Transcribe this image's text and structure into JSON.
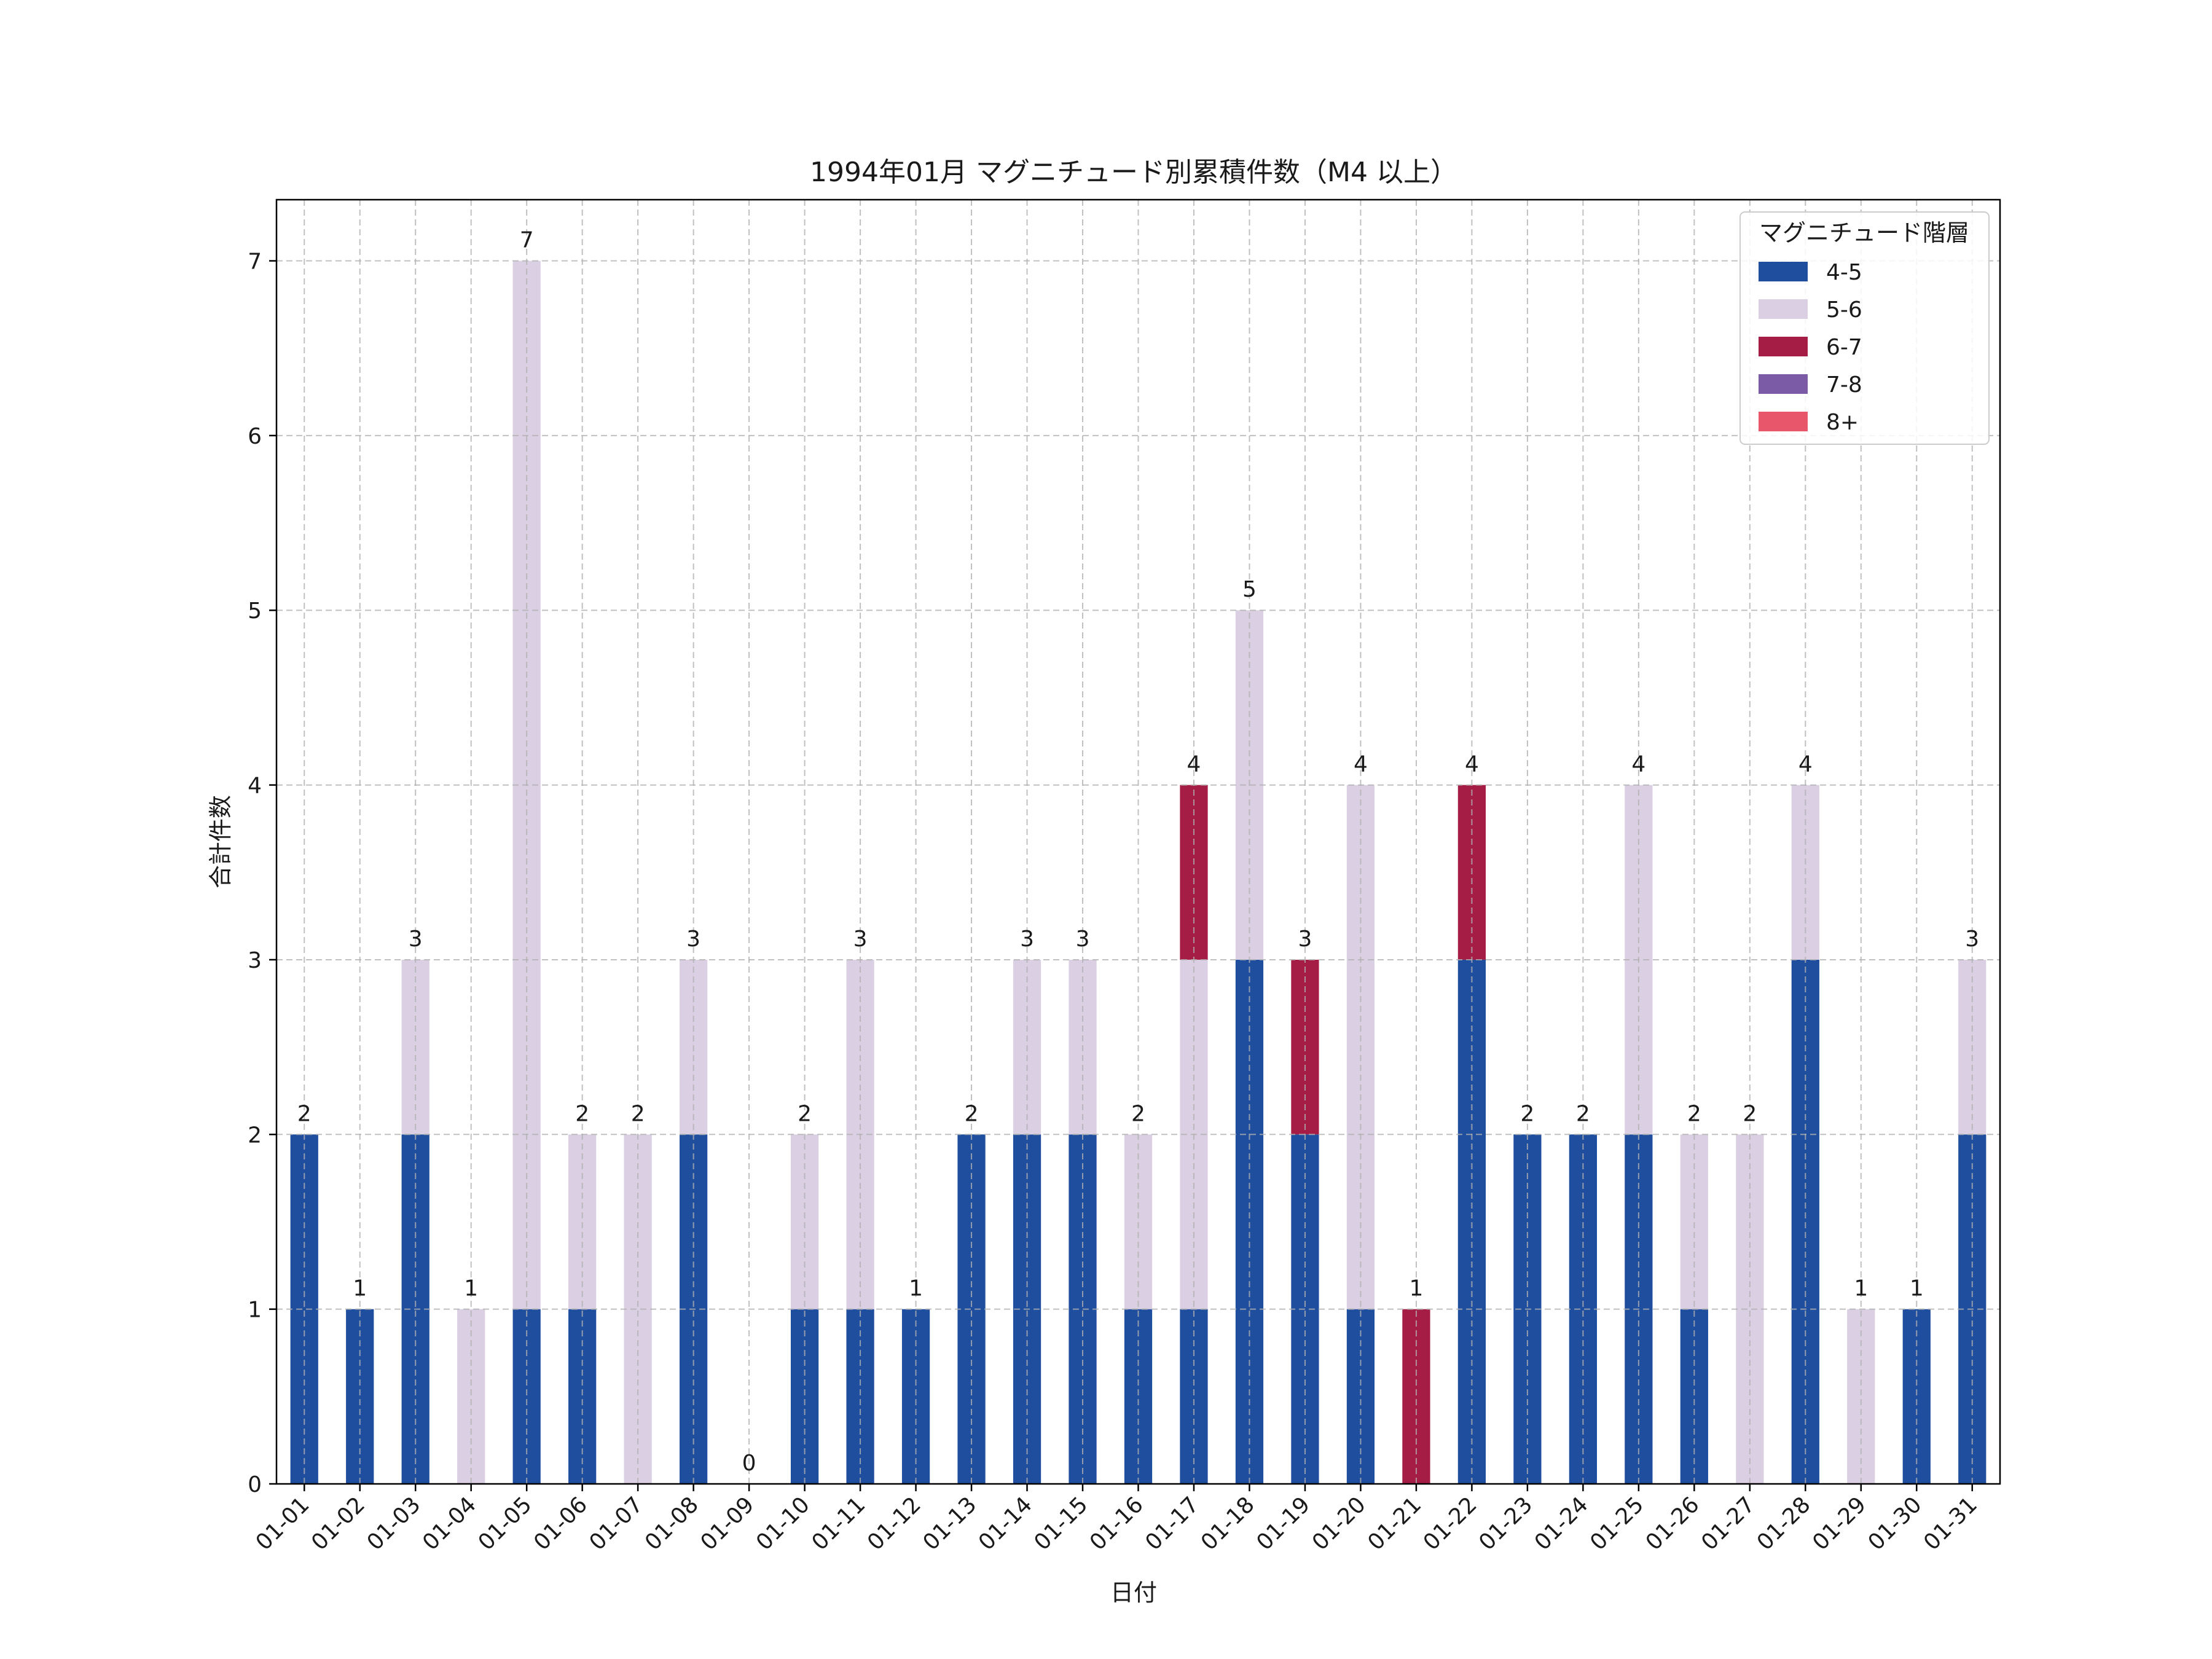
{
  "chart_data": {
    "type": "bar",
    "stacked": true,
    "title": "1994年01月 マグニチュード別累積件数（M4 以上）",
    "xlabel": "日付",
    "ylabel": "合計件数",
    "ylim": [
      0,
      7.35
    ],
    "yticks": [
      0,
      1,
      2,
      3,
      4,
      5,
      6,
      7
    ],
    "grid": true,
    "legend_title": "マグニチュード階層",
    "legend_position": "top-right",
    "categories": [
      "01-01",
      "01-02",
      "01-03",
      "01-04",
      "01-05",
      "01-06",
      "01-07",
      "01-08",
      "01-09",
      "01-10",
      "01-11",
      "01-12",
      "01-13",
      "01-14",
      "01-15",
      "01-16",
      "01-17",
      "01-18",
      "01-19",
      "01-20",
      "01-21",
      "01-22",
      "01-23",
      "01-24",
      "01-25",
      "01-26",
      "01-27",
      "01-28",
      "01-29",
      "01-30",
      "01-31"
    ],
    "series": [
      {
        "name": "4-5",
        "color": "#1f4e9e",
        "values": [
          2,
          1,
          2,
          0,
          1,
          1,
          0,
          2,
          0,
          1,
          1,
          1,
          2,
          2,
          2,
          1,
          1,
          3,
          2,
          1,
          0,
          3,
          2,
          2,
          2,
          1,
          0,
          3,
          0,
          1,
          2
        ]
      },
      {
        "name": "5-6",
        "color": "#dbd0e3",
        "values": [
          0,
          0,
          1,
          1,
          6,
          1,
          2,
          1,
          0,
          1,
          2,
          0,
          0,
          1,
          1,
          1,
          2,
          2,
          0,
          3,
          0,
          0,
          0,
          0,
          2,
          1,
          2,
          1,
          1,
          0,
          1
        ]
      },
      {
        "name": "6-7",
        "color": "#a51c45",
        "values": [
          0,
          0,
          0,
          0,
          0,
          0,
          0,
          0,
          0,
          0,
          0,
          0,
          0,
          0,
          0,
          0,
          1,
          0,
          1,
          0,
          1,
          1,
          0,
          0,
          0,
          0,
          0,
          0,
          0,
          0,
          0
        ]
      },
      {
        "name": "7-8",
        "color": "#7b5aa6",
        "values": [
          0,
          0,
          0,
          0,
          0,
          0,
          0,
          0,
          0,
          0,
          0,
          0,
          0,
          0,
          0,
          0,
          0,
          0,
          0,
          0,
          0,
          0,
          0,
          0,
          0,
          0,
          0,
          0,
          0,
          0,
          0
        ]
      },
      {
        "name": "8+",
        "color": "#e8566c",
        "values": [
          0,
          0,
          0,
          0,
          0,
          0,
          0,
          0,
          0,
          0,
          0,
          0,
          0,
          0,
          0,
          0,
          0,
          0,
          0,
          0,
          0,
          0,
          0,
          0,
          0,
          0,
          0,
          0,
          0,
          0,
          0
        ]
      }
    ],
    "totals": [
      2,
      1,
      3,
      1,
      7,
      2,
      2,
      3,
      0,
      2,
      3,
      1,
      2,
      3,
      3,
      2,
      4,
      5,
      3,
      4,
      1,
      4,
      2,
      2,
      4,
      2,
      2,
      4,
      1,
      1,
      3
    ]
  }
}
